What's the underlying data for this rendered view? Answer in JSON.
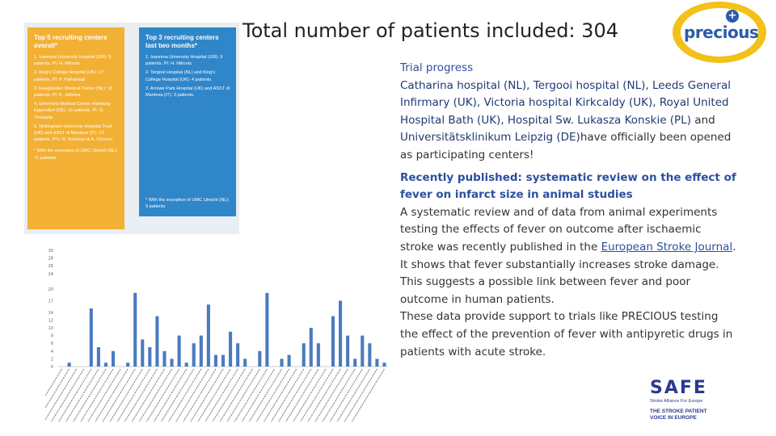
{
  "title": "Total number of patients included: 304",
  "logo": {
    "text": "precious",
    "dot_symbol": "+"
  },
  "panel_overall": {
    "heading": "Top 5 recruiting centers overall*",
    "items": [
      "1. Ioannina University Hospital (GR): 9 patients. PI: H. Milionis",
      "2. King's College Hospital (UK): 17 patients. PI: P. Pathansali",
      "3. Haaglanden Medical Center (NL): 16 patients. PI: K. Jellema",
      "4. University Medical Center Hamburg Eppendorf (DE): 15 patients. PI: G. Thomalla",
      "5. Nottingham University Hospital Trust (UK) and ASST di Mantova (IT): 13 patients. PI's: R. Kolsman & A. Ciccone"
    ],
    "note": "* With the exception of UMC Utrecht (NL): 71 patients"
  },
  "panel_recent": {
    "heading": "Top 3 recruiting centers last two months*",
    "items": [
      "1. Ioannina University Hospital (GR): 9 patients. PI: H. Milionis",
      "2. Tergooi Hospital (NL) and King's College Hospital (UK): 4 patients.",
      "3. Arrowe Park Hospital (UK) and ASST di Mantova (IT): 3 patients."
    ],
    "note": "* With the exception of UMC Utrecht (NL): 9 patients"
  },
  "trial": {
    "heading": "Trial progress",
    "centers": "Catharina hospital (NL), Tergooi hospital (NL), Leeds General Infirmary (UK), Victoria hospital Kirkcaldy (UK), Royal United Hospital Bath (UK), Hospital Sw. Lukasza Konskie (PL)",
    "and_word": " and ",
    "last_center": "Universitätsklinikum Leipzig (DE)",
    "rest": "have officially been opened as participating centers!"
  },
  "published": {
    "heading": "Recently published: systematic review on the effect of fever on infarct size in animal studies",
    "para_start": "A systematic review and of data from animal experiments testing the effects of fever on outcome after ischaemic stroke was recently published in the",
    "link_text": "European Stroke Journal",
    "para_end": ". It shows that fever substantially increases stroke damage. This suggests a possible link between fever and poor outcome in human patients.",
    "para2": "These data provide support to trials like PRECIOUS testing the effect of the prevention of fever with antipyretic drugs in patients with acute stroke."
  },
  "safe_logo": {
    "title": "SAFE",
    "subtitle": "Stroke Alliance For Europe",
    "tagline_1": "THE STROKE PATIENT",
    "tagline_2": "VOICE IN EUROPE"
  },
  "chart_data": {
    "type": "bar",
    "ylim": [
      0,
      30
    ],
    "y_ticks": [
      0,
      2,
      4,
      6,
      8,
      10,
      12,
      14,
      17,
      20,
      24,
      26,
      28,
      30
    ],
    "bar_color": "#4a7ac0",
    "values": [
      0,
      1,
      0,
      0,
      15,
      5,
      1,
      4,
      0,
      1,
      19,
      7,
      5,
      13,
      4,
      2,
      8,
      1,
      6,
      8,
      16,
      3,
      3,
      9,
      6,
      2,
      0,
      4,
      19,
      0,
      2,
      3,
      0,
      6,
      10,
      6,
      0,
      13,
      17,
      8,
      2,
      8,
      6,
      2,
      1
    ]
  }
}
